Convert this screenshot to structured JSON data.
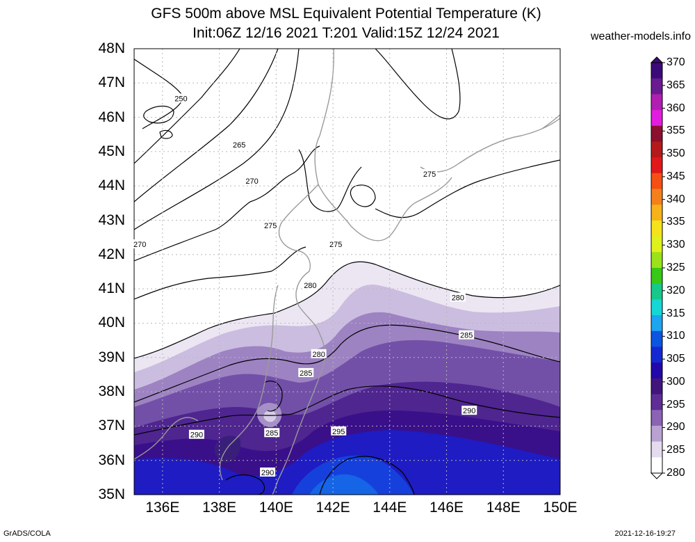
{
  "header": {
    "title": "GFS 500m above MSL Equivalent Potential Temperature (K)",
    "subtitle": "Init:06Z 12/16 2021 T:201 Valid:15Z 12/24 2021",
    "site": "weather-models.info"
  },
  "footer": {
    "credit": "GrADS/COLA",
    "timestamp": "2021-12-16-19:27"
  },
  "map": {
    "lat_labels": [
      "48N",
      "47N",
      "46N",
      "45N",
      "44N",
      "43N",
      "42N",
      "41N",
      "40N",
      "39N",
      "38N",
      "37N",
      "36N",
      "35N"
    ],
    "lon_labels": [
      "136E",
      "138E",
      "140E",
      "142E",
      "144E",
      "146E",
      "148E",
      "150E"
    ],
    "lat_range": [
      35,
      48
    ],
    "lon_range": [
      135,
      150
    ],
    "grid": "dotted",
    "contour_labels": [
      {
        "text": "250",
        "lat": 46.55,
        "lon": 136.65
      },
      {
        "text": "265",
        "lat": 45.2,
        "lon": 138.7
      },
      {
        "text": "270",
        "lat": 44.15,
        "lon": 139.15
      },
      {
        "text": "270",
        "lat": 42.3,
        "lon": 135.2
      },
      {
        "text": "275",
        "lat": 42.85,
        "lon": 139.8
      },
      {
        "text": "275",
        "lat": 42.3,
        "lon": 142.1
      },
      {
        "text": "275",
        "lat": 44.35,
        "lon": 145.4
      },
      {
        "text": "280",
        "lat": 41.1,
        "lon": 141.2
      },
      {
        "text": "280",
        "lat": 40.75,
        "lon": 146.4
      },
      {
        "text": "280",
        "lat": 39.1,
        "lon": 141.5
      },
      {
        "text": "285",
        "lat": 39.65,
        "lon": 146.7
      },
      {
        "text": "285",
        "lat": 38.55,
        "lon": 141.05
      },
      {
        "text": "285",
        "lat": 36.8,
        "lon": 139.85
      },
      {
        "text": "290",
        "lat": 37.45,
        "lon": 146.8
      },
      {
        "text": "290",
        "lat": 36.75,
        "lon": 137.2
      },
      {
        "text": "290",
        "lat": 35.65,
        "lon": 139.7
      },
      {
        "text": "295",
        "lat": 36.85,
        "lon": 142.2
      }
    ]
  },
  "colorbar": {
    "labels": [
      "370",
      "365",
      "360",
      "355",
      "350",
      "345",
      "340",
      "335",
      "330",
      "325",
      "320",
      "315",
      "310",
      "305",
      "300",
      "295",
      "290",
      "285",
      "280"
    ],
    "colors": [
      "#3c0a78",
      "#6a1b8f",
      "#b01fb0",
      "#e21de0",
      "#8b0f2e",
      "#b41a1a",
      "#e0181a",
      "#f54f14",
      "#f4801c",
      "#f6b21a",
      "#f5e21c",
      "#dff11a",
      "#9be21a",
      "#38c816",
      "#16c98a",
      "#14d7d6",
      "#1da5ef",
      "#0b55e0",
      "#1428d2",
      "#2208a8",
      "#41157c",
      "#5e2d96",
      "#8b63b4",
      "#b9a2d2",
      "#e4dbee",
      "#ffffff"
    ]
  }
}
